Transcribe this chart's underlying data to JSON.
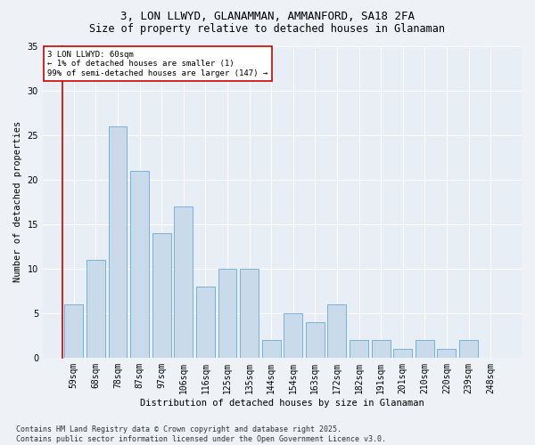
{
  "title": "3, LON LLWYD, GLANAMMAN, AMMANFORD, SA18 2FA",
  "subtitle": "Size of property relative to detached houses in Glanaman",
  "xlabel": "Distribution of detached houses by size in Glanaman",
  "ylabel": "Number of detached properties",
  "categories": [
    "59sqm",
    "68sqm",
    "78sqm",
    "87sqm",
    "97sqm",
    "106sqm",
    "116sqm",
    "125sqm",
    "135sqm",
    "144sqm",
    "154sqm",
    "163sqm",
    "172sqm",
    "182sqm",
    "191sqm",
    "201sqm",
    "210sqm",
    "220sqm",
    "239sqm",
    "248sqm"
  ],
  "values": [
    6,
    11,
    26,
    21,
    14,
    17,
    8,
    10,
    10,
    2,
    5,
    4,
    6,
    2,
    2,
    1,
    2,
    1,
    2,
    0
  ],
  "bar_color": "#c9daea",
  "bar_edge_color": "#6aaad4",
  "ylim": [
    0,
    35
  ],
  "yticks": [
    0,
    5,
    10,
    15,
    20,
    25,
    30,
    35
  ],
  "annotation_text": "3 LON LLWYD: 60sqm\n← 1% of detached houses are smaller (1)\n99% of semi-detached houses are larger (147) →",
  "annotation_box_color": "#ffffff",
  "annotation_box_edge_color": "#cc0000",
  "footer_text": "Contains HM Land Registry data © Crown copyright and database right 2025.\nContains public sector information licensed under the Open Government Licence v3.0.",
  "bg_color": "#eef2f7",
  "plot_bg_color": "#e8eef6",
  "grid_color": "#ffffff",
  "title_fontsize": 9,
  "subtitle_fontsize": 8.5,
  "axis_label_fontsize": 7.5,
  "tick_fontsize": 7,
  "annotation_fontsize": 6.5,
  "footer_fontsize": 6
}
